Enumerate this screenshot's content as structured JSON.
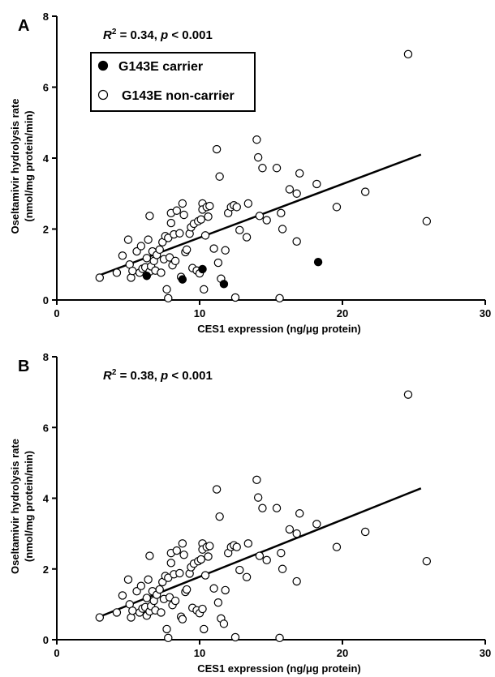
{
  "chart_data": [
    {
      "type": "scatter",
      "panel_label": "A",
      "annotation": {
        "r2_label": "R",
        "r2_exp": "2",
        "r2_value": " = 0.34, ",
        "p_label": "p",
        "p_value": " < 0.001"
      },
      "xlabel": "CES1 expression (ng/μg protein)",
      "ylabel_line1": "Oseltamivir hydrolysis rate",
      "ylabel_line2": "(nmol/mg protein/min)",
      "xlim": [
        0,
        30
      ],
      "ylim": [
        0,
        8
      ],
      "xticks": [
        0,
        10,
        20,
        30
      ],
      "yticks": [
        0,
        2,
        4,
        6,
        8
      ],
      "legend": {
        "position": "top-left",
        "entries": [
          "G143E carrier",
          "G143E non-carrier"
        ]
      },
      "regression": {
        "x": [
          3,
          25.5
        ],
        "y": [
          0.7,
          4.1
        ]
      },
      "series": [
        {
          "name": "G143E carrier",
          "marker": "filled",
          "points": [
            [
              6.3,
              0.68
            ],
            [
              8.8,
              0.58
            ],
            [
              10.2,
              0.87
            ],
            [
              11.7,
              0.45
            ],
            [
              18.3,
              1.07
            ]
          ]
        },
        {
          "name": "G143E non-carrier",
          "marker": "open",
          "points": [
            [
              3.0,
              0.63
            ],
            [
              4.2,
              0.77
            ],
            [
              4.6,
              1.25
            ],
            [
              5.0,
              1.7
            ],
            [
              5.1,
              1.0
            ],
            [
              5.2,
              0.63
            ],
            [
              5.3,
              0.82
            ],
            [
              5.6,
              1.37
            ],
            [
              5.8,
              0.77
            ],
            [
              5.9,
              1.52
            ],
            [
              6.0,
              0.88
            ],
            [
              6.2,
              0.92
            ],
            [
              6.3,
              1.18
            ],
            [
              6.4,
              1.7
            ],
            [
              6.5,
              2.37
            ],
            [
              6.5,
              0.8
            ],
            [
              6.6,
              0.95
            ],
            [
              6.7,
              1.37
            ],
            [
              6.8,
              1.1
            ],
            [
              6.9,
              0.83
            ],
            [
              7.0,
              1.27
            ],
            [
              7.2,
              1.42
            ],
            [
              7.3,
              0.77
            ],
            [
              7.4,
              1.63
            ],
            [
              7.5,
              1.15
            ],
            [
              7.6,
              1.8
            ],
            [
              7.7,
              0.3
            ],
            [
              7.8,
              1.75
            ],
            [
              7.8,
              0.05
            ],
            [
              7.9,
              1.2
            ],
            [
              8.0,
              2.45
            ],
            [
              8.0,
              2.17
            ],
            [
              8.1,
              0.98
            ],
            [
              8.2,
              1.85
            ],
            [
              8.3,
              1.1
            ],
            [
              8.4,
              2.52
            ],
            [
              8.6,
              1.88
            ],
            [
              8.7,
              0.65
            ],
            [
              8.8,
              2.72
            ],
            [
              8.9,
              2.4
            ],
            [
              9.0,
              1.35
            ],
            [
              9.1,
              1.42
            ],
            [
              9.3,
              1.87
            ],
            [
              9.4,
              2.05
            ],
            [
              9.5,
              0.9
            ],
            [
              9.6,
              2.15
            ],
            [
              9.8,
              0.83
            ],
            [
              9.9,
              2.22
            ],
            [
              10.0,
              0.75
            ],
            [
              10.1,
              2.27
            ],
            [
              10.2,
              2.72
            ],
            [
              10.2,
              2.55
            ],
            [
              10.4,
              1.82
            ],
            [
              10.3,
              0.3
            ],
            [
              10.5,
              2.62
            ],
            [
              10.6,
              2.35
            ],
            [
              10.7,
              2.65
            ],
            [
              11.0,
              1.45
            ],
            [
              11.2,
              4.25
            ],
            [
              11.3,
              1.05
            ],
            [
              11.4,
              3.48
            ],
            [
              11.5,
              0.6
            ],
            [
              11.8,
              1.4
            ],
            [
              12.0,
              2.45
            ],
            [
              12.2,
              2.62
            ],
            [
              12.4,
              2.67
            ],
            [
              12.5,
              0.07
            ],
            [
              12.6,
              2.62
            ],
            [
              12.8,
              1.97
            ],
            [
              13.3,
              1.77
            ],
            [
              13.4,
              2.72
            ],
            [
              14.0,
              4.52
            ],
            [
              14.1,
              4.02
            ],
            [
              14.2,
              2.37
            ],
            [
              14.4,
              3.72
            ],
            [
              14.7,
              2.25
            ],
            [
              15.4,
              3.72
            ],
            [
              15.6,
              0.05
            ],
            [
              15.7,
              2.45
            ],
            [
              15.8,
              2.0
            ],
            [
              16.3,
              3.12
            ],
            [
              16.8,
              1.65
            ],
            [
              17.0,
              3.57
            ],
            [
              16.8,
              3.0
            ],
            [
              18.2,
              3.27
            ],
            [
              19.6,
              2.62
            ],
            [
              21.6,
              3.05
            ],
            [
              24.6,
              6.93
            ],
            [
              25.9,
              2.22
            ]
          ]
        }
      ]
    },
    {
      "type": "scatter",
      "panel_label": "B",
      "annotation": {
        "r2_label": "R",
        "r2_exp": "2",
        "r2_value": " = 0.38, ",
        "p_label": "p",
        "p_value": " < 0.001"
      },
      "xlabel": "CES1 expression (ng/μg protein)",
      "ylabel_line1": "Oseltamivir hydrolysis rate",
      "ylabel_line2": "(nmol/mg protein/min)",
      "xlim": [
        0,
        30
      ],
      "ylim": [
        0,
        8
      ],
      "xticks": [
        0,
        10,
        20,
        30
      ],
      "yticks": [
        0,
        2,
        4,
        6,
        8
      ],
      "regression": {
        "x": [
          3,
          25.5
        ],
        "y": [
          0.65,
          4.28
        ]
      },
      "series": [
        {
          "marker": "open",
          "points": [
            [
              3.0,
              0.63
            ],
            [
              4.2,
              0.77
            ],
            [
              4.6,
              1.25
            ],
            [
              5.0,
              1.7
            ],
            [
              5.1,
              1.0
            ],
            [
              5.2,
              0.63
            ],
            [
              5.3,
              0.82
            ],
            [
              5.6,
              1.37
            ],
            [
              5.8,
              0.77
            ],
            [
              5.9,
              1.52
            ],
            [
              6.0,
              0.88
            ],
            [
              6.2,
              0.92
            ],
            [
              6.3,
              1.18
            ],
            [
              6.3,
              0.68
            ],
            [
              6.4,
              1.7
            ],
            [
              6.5,
              2.37
            ],
            [
              6.5,
              0.8
            ],
            [
              6.6,
              0.95
            ],
            [
              6.7,
              1.37
            ],
            [
              6.8,
              1.1
            ],
            [
              6.9,
              0.83
            ],
            [
              7.0,
              1.27
            ],
            [
              7.2,
              1.42
            ],
            [
              7.3,
              0.77
            ],
            [
              7.4,
              1.63
            ],
            [
              7.5,
              1.15
            ],
            [
              7.6,
              1.8
            ],
            [
              7.7,
              0.3
            ],
            [
              7.8,
              1.75
            ],
            [
              7.8,
              0.05
            ],
            [
              7.9,
              1.2
            ],
            [
              8.0,
              2.45
            ],
            [
              8.0,
              2.17
            ],
            [
              8.1,
              0.98
            ],
            [
              8.2,
              1.85
            ],
            [
              8.3,
              1.1
            ],
            [
              8.4,
              2.52
            ],
            [
              8.6,
              1.88
            ],
            [
              8.7,
              0.65
            ],
            [
              8.8,
              2.72
            ],
            [
              8.8,
              0.58
            ],
            [
              8.9,
              2.4
            ],
            [
              9.0,
              1.35
            ],
            [
              9.1,
              1.42
            ],
            [
              9.3,
              1.87
            ],
            [
              9.4,
              2.05
            ],
            [
              9.5,
              0.9
            ],
            [
              9.6,
              2.15
            ],
            [
              9.8,
              0.83
            ],
            [
              9.9,
              2.22
            ],
            [
              10.0,
              0.75
            ],
            [
              10.1,
              2.27
            ],
            [
              10.2,
              2.72
            ],
            [
              10.2,
              2.55
            ],
            [
              10.2,
              0.87
            ],
            [
              10.4,
              1.82
            ],
            [
              10.3,
              0.3
            ],
            [
              10.5,
              2.62
            ],
            [
              10.6,
              2.35
            ],
            [
              10.7,
              2.65
            ],
            [
              11.0,
              1.45
            ],
            [
              11.2,
              4.25
            ],
            [
              11.3,
              1.05
            ],
            [
              11.4,
              3.48
            ],
            [
              11.5,
              0.6
            ],
            [
              11.7,
              0.45
            ],
            [
              11.8,
              1.4
            ],
            [
              12.0,
              2.45
            ],
            [
              12.2,
              2.62
            ],
            [
              12.4,
              2.67
            ],
            [
              12.5,
              0.07
            ],
            [
              12.6,
              2.62
            ],
            [
              12.8,
              1.97
            ],
            [
              13.3,
              1.77
            ],
            [
              13.4,
              2.72
            ],
            [
              14.0,
              4.52
            ],
            [
              14.1,
              4.02
            ],
            [
              14.2,
              2.37
            ],
            [
              14.4,
              3.72
            ],
            [
              14.7,
              2.25
            ],
            [
              15.4,
              3.72
            ],
            [
              15.6,
              0.05
            ],
            [
              15.7,
              2.45
            ],
            [
              15.8,
              2.0
            ],
            [
              16.3,
              3.12
            ],
            [
              16.8,
              1.65
            ],
            [
              17.0,
              3.57
            ],
            [
              16.8,
              3.0
            ],
            [
              18.2,
              3.27
            ],
            [
              19.6,
              2.62
            ],
            [
              21.6,
              3.05
            ],
            [
              24.6,
              6.93
            ],
            [
              25.9,
              2.22
            ]
          ]
        }
      ]
    }
  ]
}
